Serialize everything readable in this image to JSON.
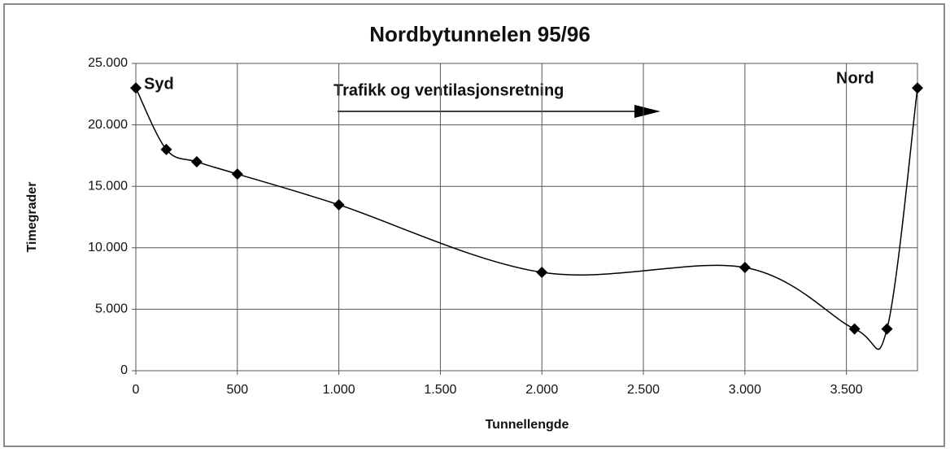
{
  "chart_data": {
    "type": "line",
    "title": "Nordbytunnelen 95/96",
    "x_label": "Tunnellengde",
    "y_label": "Timegrader",
    "annotations": [
      "Syd",
      "Trafikk og ventilasjonsretning",
      "Nord"
    ],
    "x": [
      0,
      150,
      300,
      500,
      1000,
      2000,
      3000,
      3540,
      3700,
      3850
    ],
    "series": [
      {
        "name": "Timegrader",
        "color": "#000000",
        "values": [
          23000,
          18000,
          17000,
          16000,
          13500,
          8000,
          8400,
          3400,
          3400,
          23000
        ]
      }
    ],
    "xlim": [
      0,
      3850
    ],
    "xticks": [
      0,
      500,
      {
        "value": 1000,
        "label": "1.000"
      },
      {
        "value": 1500,
        "label": "1.500"
      },
      {
        "value": 2000,
        "label": "2.000"
      },
      {
        "value": 2500,
        "label": "2.500"
      },
      {
        "value": 3000,
        "label": "3.000"
      },
      {
        "value": 3500,
        "label": "3.500"
      }
    ],
    "ylim": [
      0,
      25000
    ],
    "yticks": [
      0,
      {
        "value": 5000,
        "label": "5.000"
      },
      {
        "value": 10000,
        "label": "10.000"
      },
      {
        "value": 15000,
        "label": "15.000"
      },
      {
        "value": 20000,
        "label": "20.000"
      },
      {
        "value": 25000,
        "label": "25.000"
      }
    ],
    "grid": true,
    "smooth": true
  }
}
